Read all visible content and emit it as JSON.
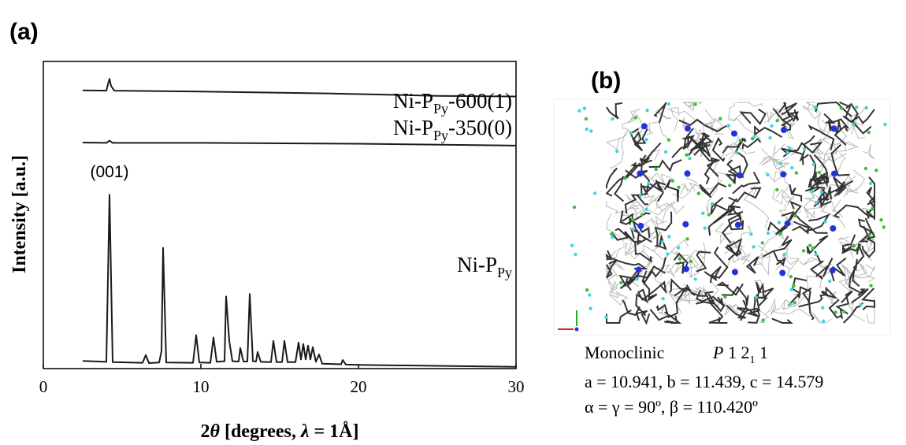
{
  "chart_data": {
    "type": "line",
    "panel_label": "(a)",
    "xlabel": {
      "before": "2",
      "theta": "θ",
      "middle": " [degrees, ",
      "lambda": "λ",
      "after": " = 1Å]"
    },
    "ylabel": "Intensity [a.u.]",
    "xlim": [
      0,
      30
    ],
    "xticks": [
      0,
      10,
      20,
      30
    ],
    "ylim": [
      0,
      100
    ],
    "annotations": [
      {
        "text": "(001)",
        "x": 4.2
      }
    ],
    "series": [
      {
        "name": {
          "main": "Ni-P",
          "sub": "Py",
          "rest": "-600(1)"
        },
        "color": "#1a1a1a",
        "x": [
          2.5,
          4.0,
          4.15,
          4.2,
          4.3,
          4.5,
          10,
          18,
          25,
          30
        ],
        "values": [
          90.6,
          90.5,
          93.5,
          94.3,
          92,
          90.5,
          90.2,
          89.6,
          88.8,
          88.6
        ]
      },
      {
        "name": {
          "main": "Ni-P",
          "sub": "Py",
          "rest": "-350(0)"
        },
        "color": "#1a1a1a",
        "x": [
          2.5,
          4.0,
          4.2,
          4.4,
          10,
          20,
          30
        ],
        "values": [
          73.6,
          73.5,
          74.2,
          73.5,
          73.5,
          73.2,
          72.6
        ]
      },
      {
        "name": {
          "main": "Ni-P",
          "sub": "Py"
        },
        "color": "#1a1a1a",
        "x": [
          2.5,
          4.0,
          4.2,
          4.4,
          6.3,
          6.5,
          6.7,
          7.35,
          7.5,
          7.6,
          7.8,
          9.5,
          9.7,
          9.9,
          10.6,
          10.8,
          11.0,
          11.5,
          11.6,
          11.8,
          12.0,
          12.4,
          12.5,
          12.7,
          12.95,
          13.1,
          13.3,
          13.5,
          13.6,
          13.8,
          14.45,
          14.6,
          14.8,
          15.15,
          15.3,
          15.5,
          16.0,
          16.2,
          16.35,
          16.5,
          16.65,
          16.8,
          16.95,
          17.1,
          17.3,
          17.5,
          17.7,
          18.9,
          19.0,
          19.2,
          20,
          25,
          30
        ],
        "values": [
          2.5,
          2.2,
          56.6,
          2.1,
          1.9,
          4.4,
          1.8,
          2,
          5.7,
          39.3,
          2,
          1.9,
          10.9,
          2,
          1.9,
          10.1,
          2.2,
          2.4,
          23.5,
          9,
          2.4,
          2.3,
          6.7,
          2.3,
          2.3,
          24.3,
          2.4,
          2.3,
          5.4,
          2.2,
          2.1,
          9,
          2.1,
          2.1,
          9,
          2.1,
          2.1,
          8.5,
          3,
          8,
          3,
          7.5,
          3,
          7,
          2.2,
          4.6,
          1.6,
          1.4,
          2.8,
          1.3,
          1.2,
          0.9,
          0.6
        ]
      }
    ]
  },
  "structure": {
    "panel_label": "(b)",
    "system": "Monoclinic",
    "space_group": {
      "italic": "P",
      "main": " 1 2",
      "sub": "1",
      "rest": " 1"
    },
    "cell_lengths": "a = 10.941, b = 11.439, c = 14.579",
    "cell_angles": "α = γ = 90º, β = 110.420º"
  }
}
